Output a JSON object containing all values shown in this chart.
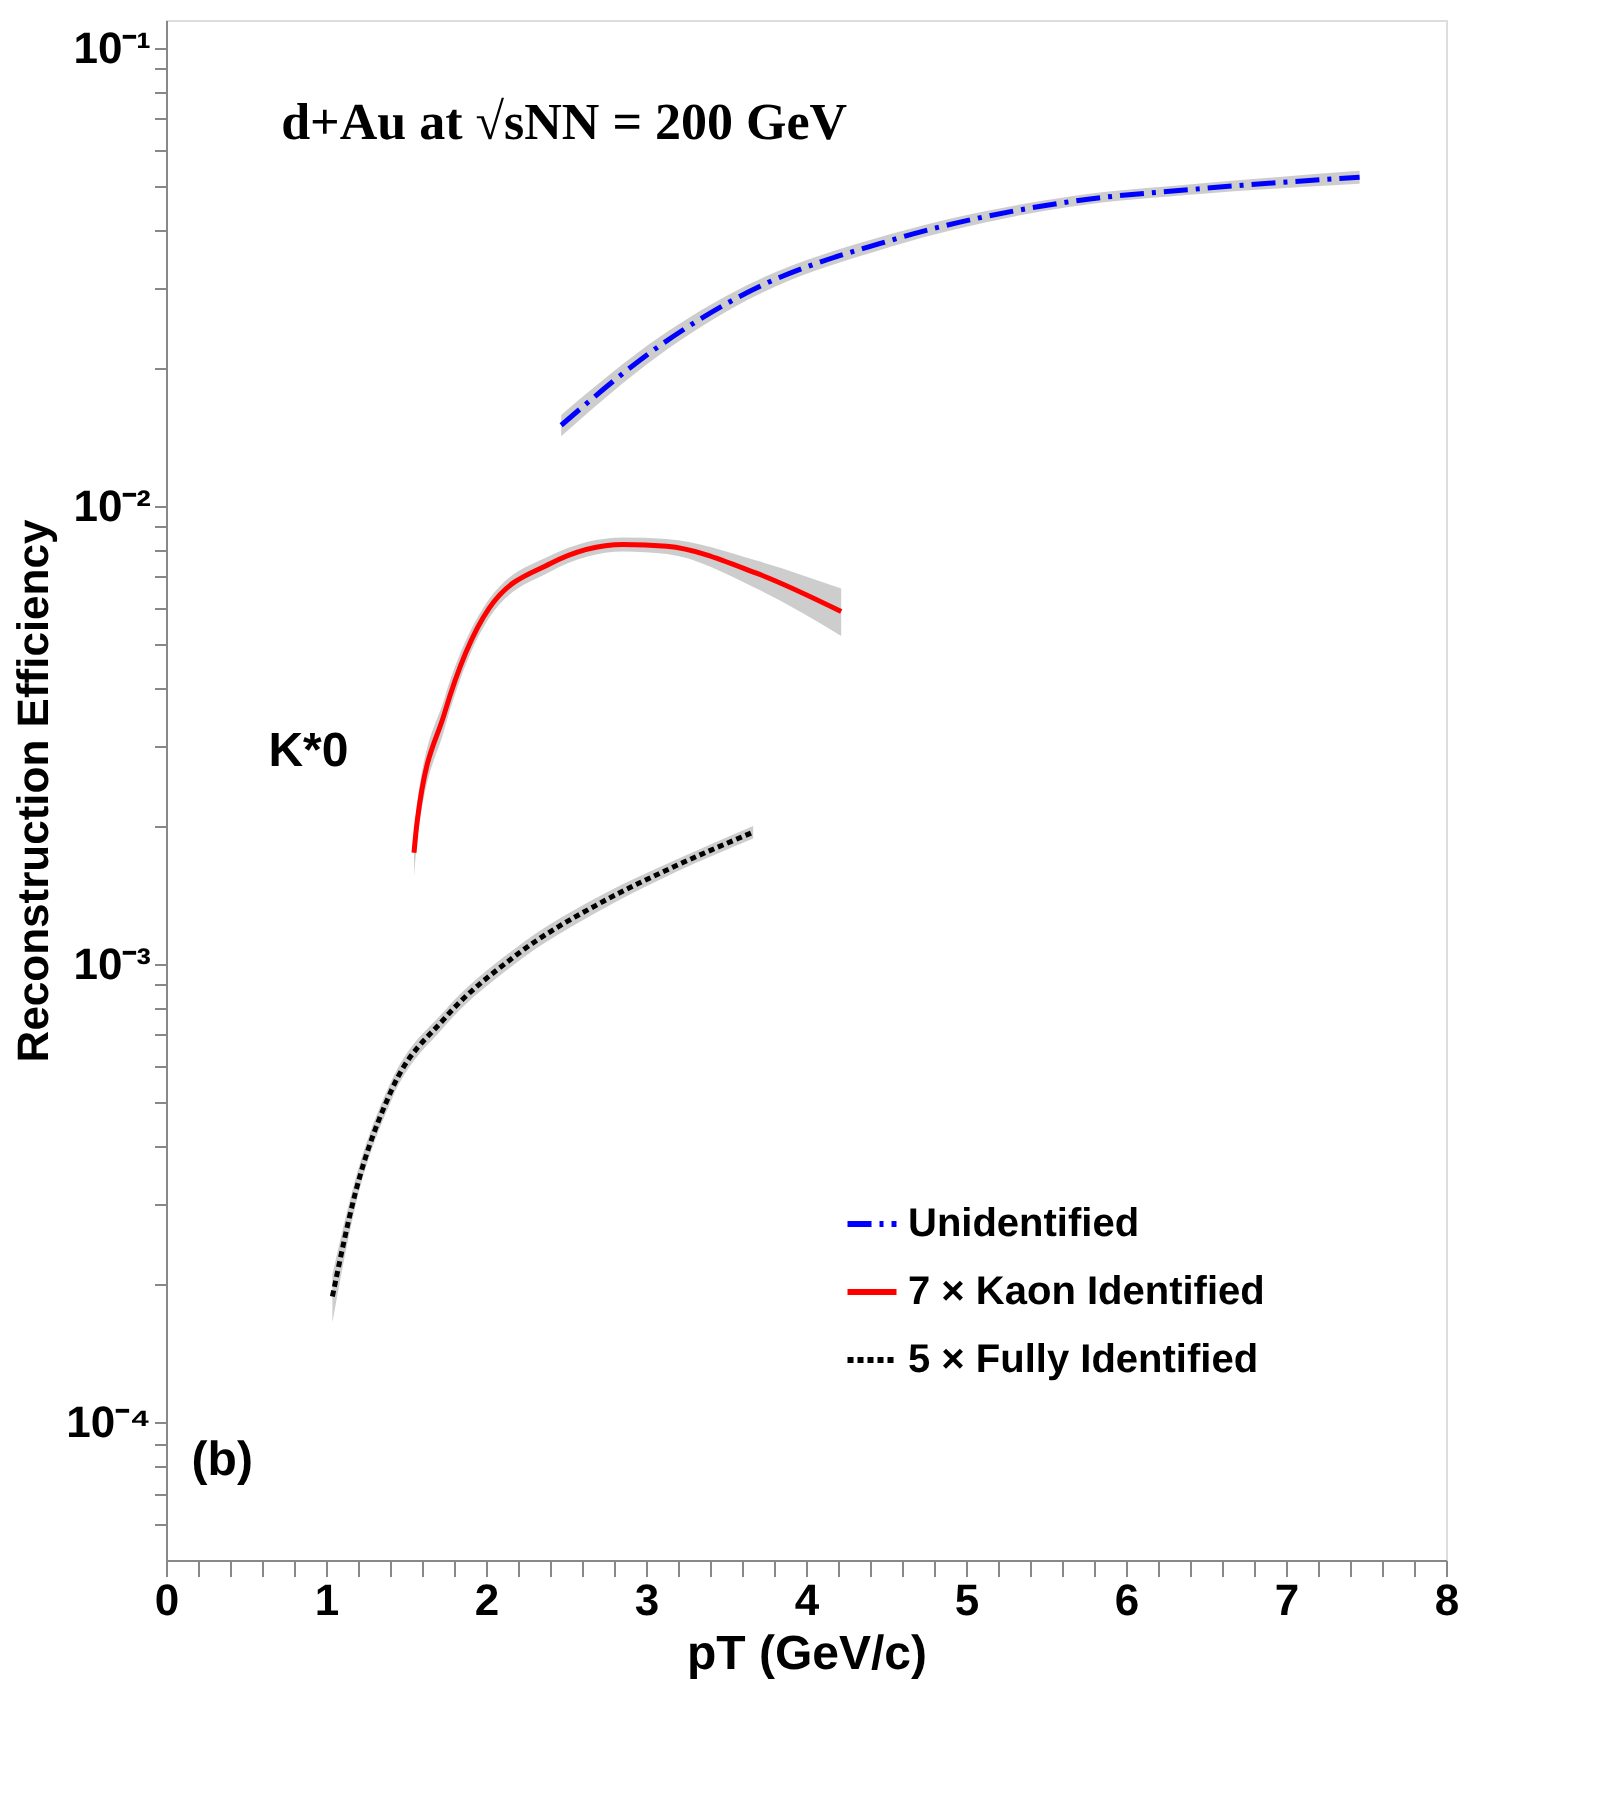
{
  "chart_data": {
    "type": "line",
    "xlabel": "pT (GeV/c)",
    "ylabel": "Reconstruction Efficiency",
    "log": "y",
    "xlim": [
      0,
      8
    ],
    "ylim": [
      5e-05,
      0.115
    ],
    "xticks": [
      0,
      {
        "value": 0.2,
        "label": null
      },
      {
        "value": 0.4,
        "label": null
      },
      {
        "value": 0.6,
        "label": null
      },
      {
        "value": 0.8,
        "label": null
      },
      1,
      {
        "value": 1.2,
        "label": null
      },
      {
        "value": 1.4,
        "label": null
      },
      {
        "value": 1.6,
        "label": null
      },
      {
        "value": 1.8,
        "label": null
      },
      2,
      {
        "value": 2.2,
        "label": null
      },
      {
        "value": 2.4,
        "label": null
      },
      {
        "value": 2.6,
        "label": null
      },
      {
        "value": 2.8,
        "label": null
      },
      3,
      {
        "value": 3.2,
        "label": null
      },
      {
        "value": 3.4,
        "label": null
      },
      {
        "value": 3.6,
        "label": null
      },
      {
        "value": 3.8,
        "label": null
      },
      4,
      {
        "value": 4.2,
        "label": null
      },
      {
        "value": 4.4,
        "label": null
      },
      {
        "value": 4.6,
        "label": null
      },
      {
        "value": 4.8,
        "label": null
      },
      5,
      {
        "value": 5.2,
        "label": null
      },
      {
        "value": 5.4,
        "label": null
      },
      {
        "value": 5.6,
        "label": null
      },
      {
        "value": 5.8,
        "label": null
      },
      6,
      {
        "value": 6.2,
        "label": null
      },
      {
        "value": 6.4,
        "label": null
      },
      {
        "value": 6.6,
        "label": null
      },
      {
        "value": 6.8,
        "label": null
      },
      7,
      {
        "value": 7.2,
        "label": null
      },
      {
        "value": 7.4,
        "label": null
      },
      {
        "value": 7.6,
        "label": null
      },
      {
        "value": 7.8,
        "label": null
      },
      8
    ],
    "yticks": [
      {
        "value": 6e-05,
        "label": null
      },
      {
        "value": 7e-05,
        "label": null
      },
      {
        "value": 8e-05,
        "label": null
      },
      {
        "value": 9e-05,
        "label": null
      },
      {
        "value": 0.0001,
        "label": "10⁻⁴"
      },
      {
        "value": 0.0002,
        "label": null
      },
      {
        "value": 0.0003,
        "label": null
      },
      {
        "value": 0.0004,
        "label": null
      },
      {
        "value": 0.0005,
        "label": null
      },
      {
        "value": 0.0006,
        "label": null
      },
      {
        "value": 0.0007,
        "label": null
      },
      {
        "value": 0.0008,
        "label": null
      },
      {
        "value": 0.0009,
        "label": null
      },
      {
        "value": 0.001,
        "label": "10⁻³"
      },
      {
        "value": 0.002,
        "label": null
      },
      {
        "value": 0.003,
        "label": null
      },
      {
        "value": 0.004,
        "label": null
      },
      {
        "value": 0.005,
        "label": null
      },
      {
        "value": 0.006,
        "label": null
      },
      {
        "value": 0.007,
        "label": null
      },
      {
        "value": 0.008,
        "label": null
      },
      {
        "value": 0.009,
        "label": null
      },
      {
        "value": 0.01,
        "label": "10⁻²"
      },
      {
        "value": 0.02,
        "label": null
      },
      {
        "value": 0.03,
        "label": null
      },
      {
        "value": 0.04,
        "label": null
      },
      {
        "value": 0.05,
        "label": null
      },
      {
        "value": 0.06,
        "label": null
      },
      {
        "value": 0.07,
        "label": null
      },
      {
        "value": 0.08,
        "label": null
      },
      {
        "value": 0.09,
        "label": null
      },
      {
        "value": 0.1,
        "label": "10⁻¹"
      }
    ],
    "grid": false,
    "legend": "bottom right",
    "annotations": [
      "d+Au at √sNN = 200 GeV",
      "K*0",
      "(b)"
    ],
    "series": [
      {
        "name": "Unidentified",
        "color": "#0000ff",
        "line_style": "dashed",
        "x": [
          2.47,
          3.08,
          3.63,
          4.53,
          5.64,
          6.48,
          7.46
        ],
        "values": [
          0.015,
          0.0223,
          0.0292,
          0.038,
          0.0461,
          0.0493,
          0.0522
        ],
        "lower": [
          0.0142,
          0.0213,
          0.0281,
          0.0368,
          0.0449,
          0.048,
          0.0505
        ],
        "upper": [
          0.0158,
          0.0233,
          0.0303,
          0.0392,
          0.0473,
          0.0506,
          0.0539
        ]
      },
      {
        "name": "7 × Kaon Identified",
        "color": "#ff0000",
        "line_style": "solid",
        "x": [
          1.55,
          1.57,
          1.74,
          2.02,
          2.4,
          2.86,
          3.13,
          3.69,
          4.22
        ],
        "values": [
          0.00175,
          0.00205,
          0.00352,
          0.00598,
          0.00748,
          0.00824,
          0.00816,
          0.00713,
          0.00588
        ],
        "lower": [
          0.00155,
          0.00185,
          0.00325,
          0.0057,
          0.00718,
          0.00795,
          0.00785,
          0.0066,
          0.0052
        ],
        "upper": [
          0.00195,
          0.00225,
          0.0038,
          0.00626,
          0.00778,
          0.00853,
          0.00847,
          0.0076,
          0.0066
        ]
      },
      {
        "name": "5 × Fully Identified",
        "color": "#000000",
        "line_style": "dotted",
        "x": [
          1.04,
          1.18,
          1.41,
          1.74,
          2.18,
          2.75,
          3.19,
          3.67
        ],
        "values": [
          0.000188,
          0.000313,
          0.000531,
          0.00076,
          0.00104,
          0.00138,
          0.00164,
          0.00194
        ],
        "lower": [
          0.000165,
          0.000292,
          0.000505,
          0.00073,
          0.001,
          0.00133,
          0.00159,
          0.00188
        ],
        "upper": [
          0.00021,
          0.000335,
          0.000557,
          0.00079,
          0.00108,
          0.00143,
          0.00169,
          0.002
        ]
      }
    ]
  }
}
